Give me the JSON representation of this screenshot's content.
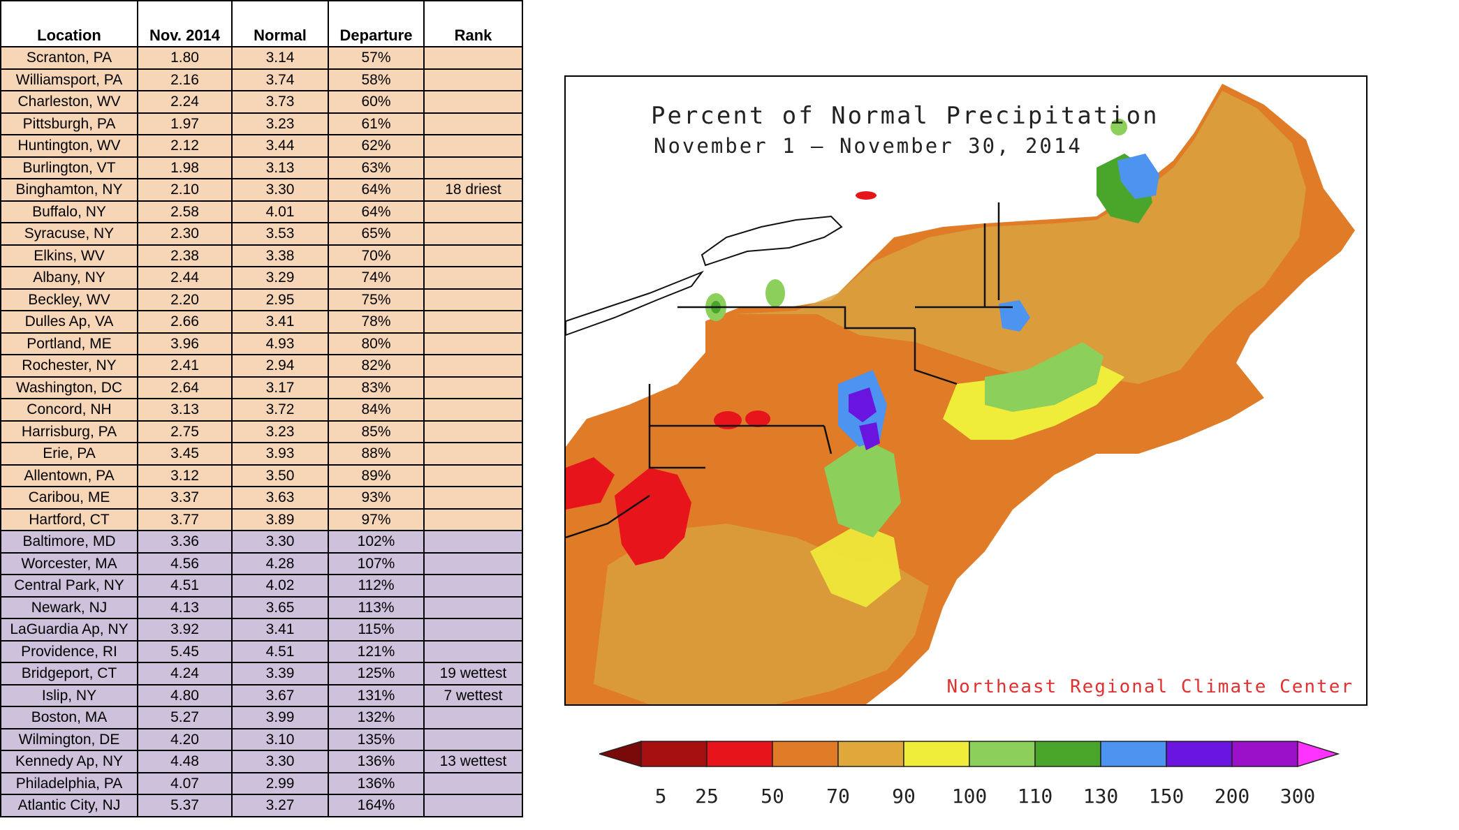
{
  "table": {
    "headers": [
      "Location",
      "Nov. 2014",
      "Normal",
      "Departure",
      "Rank"
    ],
    "rows": [
      {
        "location": "Scranton, PA",
        "nov": "1.80",
        "normal": "3.14",
        "departure": "57%",
        "rank": "",
        "group": "dry"
      },
      {
        "location": "Williamsport, PA",
        "nov": "2.16",
        "normal": "3.74",
        "departure": "58%",
        "rank": "",
        "group": "dry"
      },
      {
        "location": "Charleston, WV",
        "nov": "2.24",
        "normal": "3.73",
        "departure": "60%",
        "rank": "",
        "group": "dry"
      },
      {
        "location": "Pittsburgh, PA",
        "nov": "1.97",
        "normal": "3.23",
        "departure": "61%",
        "rank": "",
        "group": "dry"
      },
      {
        "location": "Huntington, WV",
        "nov": "2.12",
        "normal": "3.44",
        "departure": "62%",
        "rank": "",
        "group": "dry"
      },
      {
        "location": "Burlington, VT",
        "nov": "1.98",
        "normal": "3.13",
        "departure": "63%",
        "rank": "",
        "group": "dry"
      },
      {
        "location": "Binghamton, NY",
        "nov": "2.10",
        "normal": "3.30",
        "departure": "64%",
        "rank": "18 driest",
        "group": "dry"
      },
      {
        "location": "Buffalo, NY",
        "nov": "2.58",
        "normal": "4.01",
        "departure": "64%",
        "rank": "",
        "group": "dry"
      },
      {
        "location": "Syracuse, NY",
        "nov": "2.30",
        "normal": "3.53",
        "departure": "65%",
        "rank": "",
        "group": "dry"
      },
      {
        "location": "Elkins, WV",
        "nov": "2.38",
        "normal": "3.38",
        "departure": "70%",
        "rank": "",
        "group": "dry"
      },
      {
        "location": "Albany, NY",
        "nov": "2.44",
        "normal": "3.29",
        "departure": "74%",
        "rank": "",
        "group": "dry"
      },
      {
        "location": "Beckley, WV",
        "nov": "2.20",
        "normal": "2.95",
        "departure": "75%",
        "rank": "",
        "group": "dry"
      },
      {
        "location": "Dulles Ap, VA",
        "nov": "2.66",
        "normal": "3.41",
        "departure": "78%",
        "rank": "",
        "group": "dry"
      },
      {
        "location": "Portland, ME",
        "nov": "3.96",
        "normal": "4.93",
        "departure": "80%",
        "rank": "",
        "group": "dry"
      },
      {
        "location": "Rochester, NY",
        "nov": "2.41",
        "normal": "2.94",
        "departure": "82%",
        "rank": "",
        "group": "dry"
      },
      {
        "location": "Washington, DC",
        "nov": "2.64",
        "normal": "3.17",
        "departure": "83%",
        "rank": "",
        "group": "dry"
      },
      {
        "location": "Concord, NH",
        "nov": "3.13",
        "normal": "3.72",
        "departure": "84%",
        "rank": "",
        "group": "dry"
      },
      {
        "location": "Harrisburg, PA",
        "nov": "2.75",
        "normal": "3.23",
        "departure": "85%",
        "rank": "",
        "group": "dry"
      },
      {
        "location": "Erie, PA",
        "nov": "3.45",
        "normal": "3.93",
        "departure": "88%",
        "rank": "",
        "group": "dry"
      },
      {
        "location": "Allentown, PA",
        "nov": "3.12",
        "normal": "3.50",
        "departure": "89%",
        "rank": "",
        "group": "dry"
      },
      {
        "location": "Caribou, ME",
        "nov": "3.37",
        "normal": "3.63",
        "departure": "93%",
        "rank": "",
        "group": "dry"
      },
      {
        "location": "Hartford, CT",
        "nov": "3.77",
        "normal": "3.89",
        "departure": "97%",
        "rank": "",
        "group": "dry"
      },
      {
        "location": "Baltimore, MD",
        "nov": "3.36",
        "normal": "3.30",
        "departure": "102%",
        "rank": "",
        "group": "wet"
      },
      {
        "location": "Worcester, MA",
        "nov": "4.56",
        "normal": "4.28",
        "departure": "107%",
        "rank": "",
        "group": "wet"
      },
      {
        "location": "Central Park, NY",
        "nov": "4.51",
        "normal": "4.02",
        "departure": "112%",
        "rank": "",
        "group": "wet"
      },
      {
        "location": "Newark, NJ",
        "nov": "4.13",
        "normal": "3.65",
        "departure": "113%",
        "rank": "",
        "group": "wet"
      },
      {
        "location": "LaGuardia Ap, NY",
        "nov": "3.92",
        "normal": "3.41",
        "departure": "115%",
        "rank": "",
        "group": "wet"
      },
      {
        "location": "Providence, RI",
        "nov": "5.45",
        "normal": "4.51",
        "departure": "121%",
        "rank": "",
        "group": "wet"
      },
      {
        "location": "Bridgeport, CT",
        "nov": "4.24",
        "normal": "3.39",
        "departure": "125%",
        "rank": "19 wettest",
        "group": "wet"
      },
      {
        "location": "Islip, NY",
        "nov": "4.80",
        "normal": "3.67",
        "departure": "131%",
        "rank": "7 wettest",
        "group": "wet"
      },
      {
        "location": "Boston, MA",
        "nov": "5.27",
        "normal": "3.99",
        "departure": "132%",
        "rank": "",
        "group": "wet"
      },
      {
        "location": "Wilmington, DE",
        "nov": "4.20",
        "normal": "3.10",
        "departure": "135%",
        "rank": "",
        "group": "wet"
      },
      {
        "location": "Kennedy Ap, NY",
        "nov": "4.48",
        "normal": "3.30",
        "departure": "136%",
        "rank": "13 wettest",
        "group": "wet"
      },
      {
        "location": "Philadelphia, PA",
        "nov": "4.07",
        "normal": "2.99",
        "departure": "136%",
        "rank": "",
        "group": "wet"
      },
      {
        "location": "Atlantic City, NJ",
        "nov": "5.37",
        "normal": "3.27",
        "departure": "164%",
        "rank": "",
        "group": "wet"
      }
    ],
    "colors": {
      "dry_row": "#f7d6b7",
      "wet_row": "#cdc1dc"
    }
  },
  "map": {
    "title_line1": "Percent of Normal Precipitation",
    "title_line2": "November 1 — November 30, 2014",
    "credit": "Northeast Regional Climate Center"
  },
  "legend": {
    "labels": [
      "5",
      "25",
      "50",
      "70",
      "90",
      "100",
      "110",
      "130",
      "150",
      "200",
      "300"
    ],
    "colors": [
      "#a50f0f",
      "#e8141b",
      "#e07b27",
      "#e0a83a",
      "#f0ec3a",
      "#8ccf5a",
      "#4aa52b",
      "#4d94f0",
      "#6a14e0",
      "#9a10c8"
    ],
    "low_arrow_color": "#7a0a0a",
    "high_arrow_color": "#ff33ff"
  }
}
